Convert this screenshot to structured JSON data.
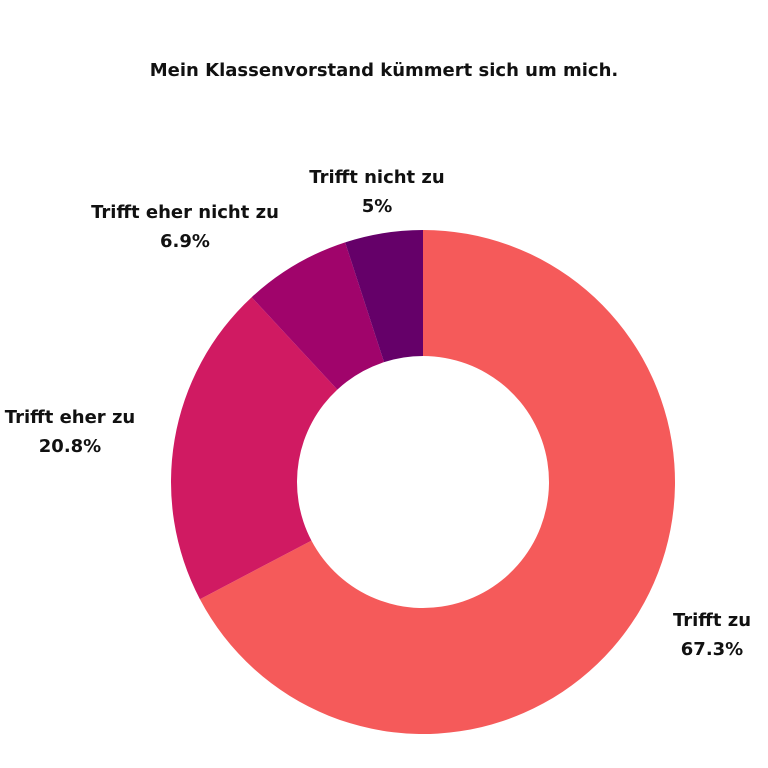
{
  "chart_data": {
    "type": "pie",
    "title": "Mein Klassenvorstand kümmert sich um mich.",
    "slices": [
      {
        "label": "Trifft zu",
        "value": 67.3,
        "display": "67.3%",
        "color": "#F55A5A"
      },
      {
        "label": "Trifft eher zu",
        "value": 20.8,
        "display": "20.8%",
        "color": "#D01A62"
      },
      {
        "label": "Trifft eher nicht zu",
        "value": 6.9,
        "display": "6.9%",
        "color": "#A0046B"
      },
      {
        "label": "Trifft nicht zu",
        "value": 5,
        "display": "5%",
        "color": "#650069"
      }
    ]
  }
}
